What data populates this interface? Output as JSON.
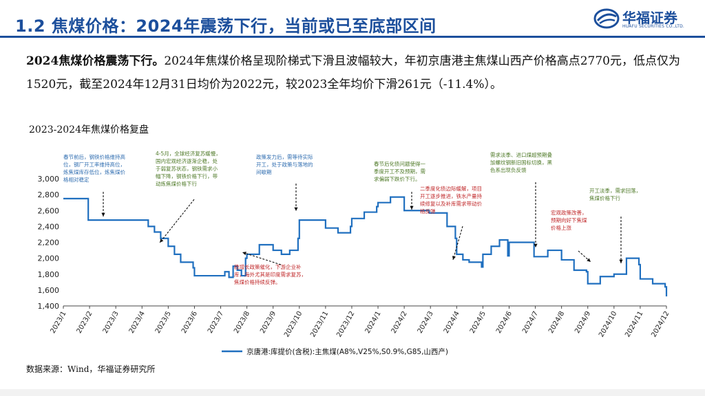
{
  "header": {
    "title": "1.2 焦煤价格：2024年震荡下行，当前或已至底部区间",
    "logo_text": "华福证券",
    "logo_sub": "HUAFU SECURITIES CO.,LTD."
  },
  "summary": {
    "lead": "2024焦煤价格震荡下行。",
    "body": "2024年焦煤价格呈现阶梯式下滑且波幅较大，年初京唐港主焦煤山西产价格高点2770元，低点仅为1520元，截至2024年12月31日均价为2022元，较2023全年均价下滑261元（-11.4%）。"
  },
  "source": "数据来源：Wind，华福证券研究所",
  "colors": {
    "line": "#1f6fbf",
    "accent": "#1c4f9c",
    "note_blue": "#2f6db0",
    "note_green": "#4f7a28",
    "note_red": "#c0282a"
  },
  "chart_data": {
    "type": "line",
    "title": "2023-2024年焦煤价格复盘",
    "ylim": [
      1400,
      3000
    ],
    "yticks": [
      "1,400",
      "1,600",
      "1,800",
      "2,000",
      "2,200",
      "2,400",
      "2,600",
      "2,800",
      "3,000"
    ],
    "xticks": [
      "2023/1",
      "2023/2",
      "2023/3",
      "2023/4",
      "2023/5",
      "2023/6",
      "2023/7",
      "2023/8",
      "2023/9",
      "2023/10",
      "2023/11",
      "2023/12",
      "2024/1",
      "2024/2",
      "2024/3",
      "2024/4",
      "2024/5",
      "2024/6",
      "2024/7",
      "2024/8",
      "2024/9",
      "2024/10",
      "2024/11",
      "2024/12"
    ],
    "legend": "京唐港:库提价(含税):主焦煤(A8%,V25%,S0.9%,G85,山西产)",
    "x_range": [
      "2023/1",
      "2024/12"
    ],
    "series": [
      {
        "name": "京唐港:库提价(含税):主焦煤(A8%,V25%,S0.9%,G85,山西产)",
        "points": [
          [
            "2023/1",
            2750
          ],
          [
            "2023/1",
            2750
          ],
          [
            "2023/1",
            2480
          ],
          [
            "2023/3",
            2480
          ],
          [
            "2023/4",
            2480
          ],
          [
            "2023/4",
            2400
          ],
          [
            "2023/4",
            2330
          ],
          [
            "2023/4",
            2250
          ],
          [
            "2023/4",
            2250
          ],
          [
            "2023/5",
            2150
          ],
          [
            "2023/5",
            2050
          ],
          [
            "2023/5",
            1950
          ],
          [
            "2023/5",
            1950
          ],
          [
            "2023/5",
            1880
          ],
          [
            "2023/6",
            1780
          ],
          [
            "2023/6",
            1780
          ],
          [
            "2023/7",
            1780
          ],
          [
            "2023/7",
            1830
          ],
          [
            "2023/7",
            1760
          ],
          [
            "2023/7",
            1900
          ],
          [
            "2023/7",
            1850
          ],
          [
            "2023/7",
            1780
          ],
          [
            "2023/7",
            2000
          ],
          [
            "2023/8",
            2050
          ],
          [
            "2023/8",
            2170
          ],
          [
            "2023/8",
            2170
          ],
          [
            "2023/9",
            2100
          ],
          [
            "2023/9",
            2050
          ],
          [
            "2023/9",
            2100
          ],
          [
            "2023/9",
            2250
          ],
          [
            "2023/10",
            2480
          ],
          [
            "2023/10",
            2480
          ],
          [
            "2023/10",
            2480
          ],
          [
            "2023/11",
            2380
          ],
          [
            "2023/11",
            2320
          ],
          [
            "2023/11",
            2400
          ],
          [
            "2023/12",
            2500
          ],
          [
            "2023/12",
            2580
          ],
          [
            "2023/12",
            2650
          ],
          [
            "2024/1",
            2700
          ],
          [
            "2024/1",
            2770
          ],
          [
            "2024/1",
            2770
          ],
          [
            "2024/2",
            2600
          ],
          [
            "2024/2",
            2570
          ],
          [
            "2024/3",
            2570
          ],
          [
            "2024/3",
            2570
          ],
          [
            "2024/3",
            2400
          ],
          [
            "2024/3",
            2250
          ],
          [
            "2024/4",
            2050
          ],
          [
            "2024/4",
            1980
          ],
          [
            "2024/4",
            1950
          ],
          [
            "2024/4",
            1950
          ],
          [
            "2024/4",
            1890
          ],
          [
            "2024/5",
            2050
          ],
          [
            "2024/5",
            2150
          ],
          [
            "2024/5",
            2230
          ],
          [
            "2024/5",
            2030
          ],
          [
            "2024/6",
            2200
          ],
          [
            "2024/6",
            2020
          ],
          [
            "2024/7",
            2020
          ],
          [
            "2024/7",
            2100
          ],
          [
            "2024/7",
            2100
          ],
          [
            "2024/8",
            1980
          ],
          [
            "2024/8",
            1850
          ],
          [
            "2024/8",
            1830
          ],
          [
            "2024/9",
            1680
          ],
          [
            "2024/9",
            1770
          ],
          [
            "2024/9",
            1770
          ],
          [
            "2024/10",
            1800
          ],
          [
            "2024/10",
            2000
          ],
          [
            "2024/10",
            1920
          ],
          [
            "2024/11",
            1740
          ],
          [
            "2024/11",
            1680
          ],
          [
            "2024/11",
            1640
          ],
          [
            "2024/12",
            1640
          ],
          [
            "2024/12",
            1610
          ],
          [
            "2024/12",
            1610
          ],
          [
            "2024/12",
            1520
          ]
        ]
      }
    ],
    "annotations": [
      {
        "color": "note_blue",
        "lines": [
          "春节前后，钢铁价格维持高",
          "位，钢厂开工率维持高位，",
          "炼焦煤库存低位，炼焦煤价",
          "格相对稳定"
        ]
      },
      {
        "color": "note_green",
        "lines": [
          "4-5月，全球经济复苏缓慢，",
          "国内宏观经济逐渐企稳，处",
          "于弱复苏状态，钢铁需求小",
          "幅下降，钢铁价格下行，带",
          "动炼焦煤价格下行"
        ]
      },
      {
        "color": "note_blue",
        "lines": [
          "政策发力后，需等待实际",
          "开工，处于政策与落地的",
          "间歇期"
        ]
      },
      {
        "color": "note_red",
        "lines": [
          "稳增长政策催化，下游企业补",
          "库，海外尤其是印度需求复苏，",
          "焦煤价格持续反弹。"
        ]
      },
      {
        "color": "note_green",
        "lines": [
          "春节后化债问题使得一",
          "季度开工不及预期，需",
          "求偏弱下跌价下行。"
        ]
      },
      {
        "color": "note_red",
        "lines": [
          "二季度化债边际缓解，项目",
          "开工逐步推进，铁水产量持",
          "续修复以及补库需求带动价",
          "格反弹"
        ]
      },
      {
        "color": "note_green",
        "lines": [
          "需求淡季、进口煤超预期叠",
          "加螺纹钢新旧国标切换，黑",
          "色系出现负反馈"
        ]
      },
      {
        "color": "note_red",
        "lines": [
          "宏观政策改善，",
          "预期向好下焦煤",
          "价格上涨"
        ]
      },
      {
        "color": "note_green",
        "lines": [
          "开工淡季，需求回落，",
          "焦煤价格下行"
        ]
      }
    ]
  }
}
